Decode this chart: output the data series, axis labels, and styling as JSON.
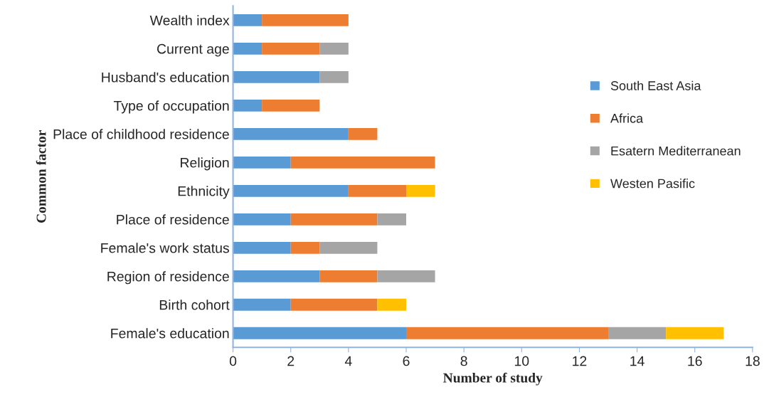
{
  "chart_data": {
    "type": "bar",
    "orientation": "horizontal",
    "stacked": true,
    "xlabel": "Number of study",
    "ylabel": "Common factor",
    "categories": [
      "Wealth index",
      "Current age",
      "Husband's education",
      "Type of occupation",
      "Place of childhood residence",
      "Religion",
      "Ethnicity",
      "Place of residence",
      "Female's work status",
      "Region of residence",
      "Birth cohort",
      "Female's education"
    ],
    "series": [
      {
        "name": "South East Asia",
        "color": "#5b9bd5",
        "values": [
          1,
          1,
          3,
          1,
          4,
          2,
          4,
          2,
          2,
          3,
          2,
          6
        ]
      },
      {
        "name": "Africa",
        "color": "#ed7d31",
        "values": [
          3,
          2,
          0,
          2,
          1,
          5,
          2,
          3,
          1,
          2,
          3,
          7
        ]
      },
      {
        "name": "Esatern Mediterranean",
        "color": "#a5a5a5",
        "values": [
          0,
          1,
          1,
          0,
          0,
          0,
          0,
          1,
          2,
          2,
          0,
          2
        ]
      },
      {
        "name": "Westen Pasific",
        "color": "#ffc000",
        "values": [
          0,
          0,
          0,
          0,
          0,
          0,
          1,
          0,
          0,
          0,
          1,
          2
        ]
      }
    ],
    "xlim": [
      0,
      18
    ],
    "xticks": [
      0,
      2,
      4,
      6,
      8,
      10,
      12,
      14,
      16,
      18
    ],
    "grid": false,
    "legend": "right"
  }
}
